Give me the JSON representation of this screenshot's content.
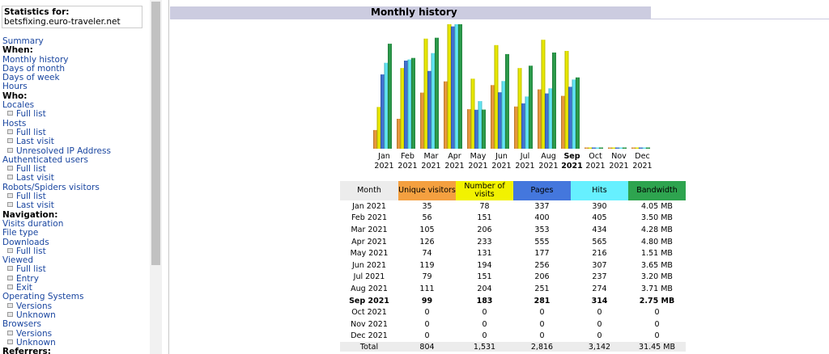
{
  "menu": {
    "stats_label": "Statistics for:",
    "site": "betsfixing.euro-traveler.net",
    "items": [
      {
        "t": "a",
        "label": "Summary"
      },
      {
        "t": "h",
        "label": "When:"
      },
      {
        "t": "a",
        "label": "Monthly history"
      },
      {
        "t": "a",
        "label": "Days of month"
      },
      {
        "t": "a",
        "label": "Days of week"
      },
      {
        "t": "a",
        "label": "Hours"
      },
      {
        "t": "h",
        "label": "Who:"
      },
      {
        "t": "a",
        "label": "Locales"
      },
      {
        "t": "s",
        "label": "Full list"
      },
      {
        "t": "a",
        "label": "Hosts"
      },
      {
        "t": "s",
        "label": "Full list"
      },
      {
        "t": "s",
        "label": "Last visit"
      },
      {
        "t": "s",
        "label": "Unresolved IP Address"
      },
      {
        "t": "a",
        "label": "Authenticated users"
      },
      {
        "t": "s",
        "label": "Full list"
      },
      {
        "t": "s",
        "label": "Last visit"
      },
      {
        "t": "a",
        "label": "Robots/Spiders visitors"
      },
      {
        "t": "s",
        "label": "Full list"
      },
      {
        "t": "s",
        "label": "Last visit"
      },
      {
        "t": "h",
        "label": "Navigation:"
      },
      {
        "t": "a",
        "label": "Visits duration"
      },
      {
        "t": "a",
        "label": "File type"
      },
      {
        "t": "a",
        "label": "Downloads"
      },
      {
        "t": "s",
        "label": "Full list"
      },
      {
        "t": "a",
        "label": "Viewed"
      },
      {
        "t": "s",
        "label": "Full list"
      },
      {
        "t": "s",
        "label": "Entry"
      },
      {
        "t": "s",
        "label": "Exit"
      },
      {
        "t": "a",
        "label": "Operating Systems"
      },
      {
        "t": "s",
        "label": "Versions"
      },
      {
        "t": "s",
        "label": "Unknown"
      },
      {
        "t": "a",
        "label": "Browsers"
      },
      {
        "t": "s",
        "label": "Versions"
      },
      {
        "t": "s",
        "label": "Unknown"
      },
      {
        "t": "h",
        "label": "Referrers:"
      }
    ]
  },
  "section_title": "Monthly history",
  "colors": {
    "unique_visitors": "#f4a040",
    "number_of_visits": "#f2f200",
    "pages": "#4477dd",
    "hits": "#66f0ff",
    "bandwidth": "#2ea44f",
    "month_header": "#ececec"
  },
  "table": {
    "headers": {
      "month": "Month",
      "unique_visitors": "Unique visitors",
      "number_of_visits": "Number of visits",
      "pages": "Pages",
      "hits": "Hits",
      "bandwidth": "Bandwidth"
    },
    "rows": [
      {
        "month": "Jan 2021",
        "uv": "35",
        "visits": "78",
        "pages": "337",
        "hits": "390",
        "bw": "4.05 MB"
      },
      {
        "month": "Feb 2021",
        "uv": "56",
        "visits": "151",
        "pages": "400",
        "hits": "405",
        "bw": "3.50 MB"
      },
      {
        "month": "Mar 2021",
        "uv": "105",
        "visits": "206",
        "pages": "353",
        "hits": "434",
        "bw": "4.28 MB"
      },
      {
        "month": "Apr 2021",
        "uv": "126",
        "visits": "233",
        "pages": "555",
        "hits": "565",
        "bw": "4.80 MB"
      },
      {
        "month": "May 2021",
        "uv": "74",
        "visits": "131",
        "pages": "177",
        "hits": "216",
        "bw": "1.51 MB"
      },
      {
        "month": "Jun 2021",
        "uv": "119",
        "visits": "194",
        "pages": "256",
        "hits": "307",
        "bw": "3.65 MB"
      },
      {
        "month": "Jul 2021",
        "uv": "79",
        "visits": "151",
        "pages": "206",
        "hits": "237",
        "bw": "3.20 MB"
      },
      {
        "month": "Aug 2021",
        "uv": "111",
        "visits": "204",
        "pages": "251",
        "hits": "274",
        "bw": "3.71 MB"
      },
      {
        "month": "Sep 2021",
        "uv": "99",
        "visits": "183",
        "pages": "281",
        "hits": "314",
        "bw": "2.75 MB"
      },
      {
        "month": "Oct 2021",
        "uv": "0",
        "visits": "0",
        "pages": "0",
        "hits": "0",
        "bw": "0"
      },
      {
        "month": "Nov 2021",
        "uv": "0",
        "visits": "0",
        "pages": "0",
        "hits": "0",
        "bw": "0"
      },
      {
        "month": "Dec 2021",
        "uv": "0",
        "visits": "0",
        "pages": "0",
        "hits": "0",
        "bw": "0"
      }
    ],
    "total": {
      "month": "Total",
      "uv": "804",
      "visits": "1,531",
      "pages": "2,816",
      "hits": "3,142",
      "bw": "31.45 MB"
    }
  },
  "chart_data": {
    "type": "bar",
    "categories": [
      "Jan",
      "Feb",
      "Mar",
      "Apr",
      "May",
      "Jun",
      "Jul",
      "Aug",
      "Sep",
      "Oct",
      "Nov",
      "Dec"
    ],
    "years": [
      "2021",
      "2021",
      "2021",
      "2021",
      "2021",
      "2021",
      "2021",
      "2021",
      "2021",
      "2021",
      "2021",
      "2021"
    ],
    "current_month_index": 8,
    "series": [
      {
        "key": "unique_visitors",
        "values": [
          35,
          56,
          105,
          126,
          74,
          119,
          79,
          111,
          99,
          0,
          0,
          0
        ]
      },
      {
        "key": "number_of_visits",
        "values": [
          78,
          151,
          206,
          233,
          131,
          194,
          151,
          204,
          183,
          0,
          0,
          0
        ]
      },
      {
        "key": "pages",
        "values": [
          337,
          400,
          353,
          555,
          177,
          256,
          206,
          251,
          281,
          0,
          0,
          0
        ]
      },
      {
        "key": "hits",
        "values": [
          390,
          405,
          434,
          565,
          216,
          307,
          237,
          274,
          314,
          0,
          0,
          0
        ]
      },
      {
        "key": "bandwidth_mb",
        "values": [
          4.05,
          3.5,
          4.28,
          4.8,
          1.51,
          3.65,
          3.2,
          3.71,
          2.75,
          0,
          0,
          0
        ]
      }
    ]
  }
}
